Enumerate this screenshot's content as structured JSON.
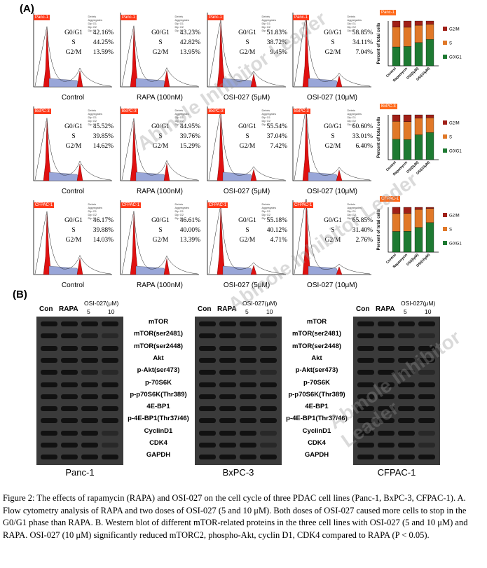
{
  "panel_a_label": "(A)",
  "panel_b_label": "(B)",
  "conditions": [
    "Control",
    "RAPA (100nM)",
    "OSI-027 (5μM)",
    "OSI-027 (10μM)"
  ],
  "phase_labels": [
    "G0/G1",
    "S",
    "G2/M"
  ],
  "cell_rows": [
    {
      "line": "Panc-1",
      "values": [
        [
          "42.16%",
          "44.25%",
          "13.59%"
        ],
        [
          "43.23%",
          "42.82%",
          "13.95%"
        ],
        [
          "51.83%",
          "38.72%",
          "9.45%"
        ],
        [
          "58.85%",
          "34.11%",
          "7.04%"
        ]
      ]
    },
    {
      "line": "BxPC-3",
      "values": [
        [
          "45.52%",
          "39.85%",
          "14.62%"
        ],
        [
          "44.95%",
          "39.76%",
          "15.29%"
        ],
        [
          "55.54%",
          "37.04%",
          "7.42%"
        ],
        [
          "60.60%",
          "33.01%",
          "6.40%"
        ]
      ]
    },
    {
      "line": "CFPAC-1",
      "values": [
        [
          "46.17%",
          "39.88%",
          "14.03%"
        ],
        [
          "46.61%",
          "40.00%",
          "13.39%"
        ],
        [
          "55.18%",
          "40.12%",
          "4.71%"
        ],
        [
          "65.85%",
          "31.40%",
          "2.76%"
        ]
      ]
    }
  ],
  "hist_legend": [
    "Debris",
    "Aggregates",
    "Dip G1",
    "Dip G2",
    "Dip S"
  ],
  "chart_data": [
    {
      "type": "bar",
      "title": "Panc-1",
      "ylabel": "Percent of total cells",
      "categories": [
        "Control",
        "Rapamycin",
        "OSI(5μM)",
        "OSI(10μM)"
      ],
      "ylim": [
        0,
        100
      ],
      "series": [
        {
          "name": "G0/G1",
          "values": [
            42.16,
            43.23,
            51.83,
            58.85
          ]
        },
        {
          "name": "S",
          "values": [
            44.25,
            42.82,
            38.72,
            34.11
          ]
        },
        {
          "name": "G2/M",
          "values": [
            13.59,
            13.95,
            9.45,
            7.04
          ]
        }
      ]
    },
    {
      "type": "bar",
      "title": "BxPC-3",
      "ylabel": "Percent of total cells",
      "categories": [
        "Control",
        "Rapamycin",
        "OSI(5μM)",
        "OSI(10μM)"
      ],
      "ylim": [
        0,
        100
      ],
      "series": [
        {
          "name": "G0/G1",
          "values": [
            45.52,
            44.95,
            55.54,
            60.6
          ]
        },
        {
          "name": "S",
          "values": [
            39.85,
            39.76,
            37.04,
            33.01
          ]
        },
        {
          "name": "G2/M",
          "values": [
            14.62,
            15.29,
            7.42,
            6.4
          ]
        }
      ]
    },
    {
      "type": "bar",
      "title": "CFPAC-1",
      "ylabel": "Percent of total cells",
      "categories": [
        "Control",
        "Rapamycin",
        "OSI(5μM)",
        "OSI(10μM)"
      ],
      "ylim": [
        0,
        100
      ],
      "series": [
        {
          "name": "G0/G1",
          "values": [
            46.17,
            46.61,
            55.18,
            65.85
          ]
        },
        {
          "name": "S",
          "values": [
            39.88,
            40.0,
            40.12,
            31.4
          ]
        },
        {
          "name": "G2/M",
          "values": [
            14.03,
            13.39,
            4.71,
            2.76
          ]
        }
      ]
    }
  ],
  "bar_colors": {
    "G0/G1": "#1e7a32",
    "S": "#e07828",
    "G2/M": "#a02018"
  },
  "blot": {
    "lane_con": "Con",
    "lane_rapa": "RAPA",
    "lane_osi": "OSI-027(μM)",
    "lane_5": "5",
    "lane_10": "10",
    "proteins": [
      "mTOR",
      "mTOR(ser2481)",
      "mTOR(ser2448)",
      "Akt",
      "p-Akt(ser473)",
      "p-70S6K",
      "p-p70S6K(Thr389)",
      "4E-BP1",
      "p-4E-BP1(Thr37/46)",
      "CyclinD1",
      "CDK4",
      "GAPDH"
    ],
    "cell_lines": [
      "Panc-1",
      "BxPC-3",
      "CFPAC-1"
    ]
  },
  "caption": "Figure 2: The effects of rapamycin (RAPA) and OSI-027 on the cell cycle of three PDAC cell lines (Panc-1, BxPC-3, CFPAC-1). A. Flow cytometry analysis of RAPA and two doses of OSI-027 (5 and 10 μM). Both doses of OSI-027 caused more cells to stop in the G0/G1 phase than RAPA. B. Western blot of different mTOR-related proteins in the three cell lines with OSI-027 (5 and 10 μM) and RAPA. OSI-027 (10 μM) significantly reduced mTORC2, phospho-Akt, cyclin D1, CDK4 compared to RAPA (P < 0.05).",
  "watermark": "Abmole Inhibitor Leader"
}
